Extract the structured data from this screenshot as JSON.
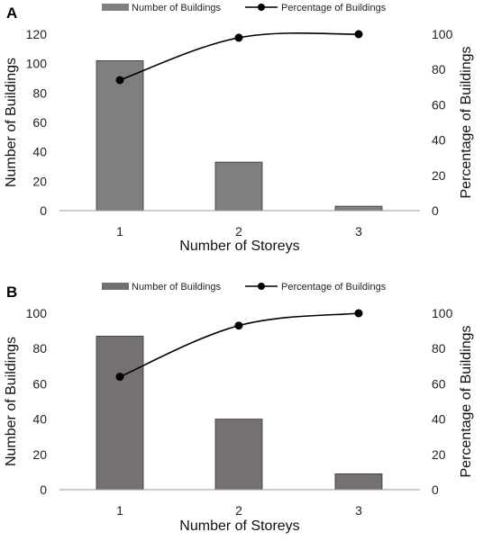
{
  "figure": {
    "panels": [
      {
        "letter": "A",
        "legend": {
          "bar": "Number of Buildings",
          "line": "Percentage of Buildings"
        },
        "bar_color": "#7f7f7f",
        "chart_data": {
          "type": "bar",
          "categories": [
            "1",
            "2",
            "3"
          ],
          "series": [
            {
              "name": "Number of Buildings",
              "type": "bar",
              "axis": "left",
              "values": [
                102,
                33,
                3
              ]
            },
            {
              "name": "Percentage of Buildings",
              "type": "line",
              "axis": "right",
              "values": [
                74,
                98,
                100
              ]
            }
          ],
          "xlabel": "Number of Storeys",
          "ylabel": "Number of Buildings",
          "y2label": "Percentage of Buildings",
          "ylim": [
            0,
            120
          ],
          "y2lim": [
            0,
            100
          ],
          "yticks": [
            0,
            20,
            40,
            60,
            80,
            100,
            120
          ],
          "y2ticks": [
            0,
            20,
            40,
            60,
            80,
            100
          ],
          "legend_position": "top",
          "grid": false
        }
      },
      {
        "letter": "B",
        "legend": {
          "bar": "Number of Buildings",
          "line": "Percentage of Buildings"
        },
        "bar_color": "#767171",
        "chart_data": {
          "type": "bar",
          "categories": [
            "1",
            "2",
            "3"
          ],
          "series": [
            {
              "name": "Number of Buildings",
              "type": "bar",
              "axis": "left",
              "values": [
                87,
                40,
                9
              ]
            },
            {
              "name": "Percentage of Buildings",
              "type": "line",
              "axis": "right",
              "values": [
                64,
                93,
                100
              ]
            }
          ],
          "xlabel": "Number of Storeys",
          "ylabel": "Number of Buildings",
          "y2label": "Percentage of Buildings",
          "ylim": [
            0,
            100
          ],
          "y2lim": [
            0,
            100
          ],
          "yticks": [
            0,
            20,
            40,
            60,
            80,
            100
          ],
          "y2ticks": [
            0,
            20,
            40,
            60,
            80,
            100
          ],
          "legend_position": "top",
          "grid": false
        }
      }
    ]
  }
}
